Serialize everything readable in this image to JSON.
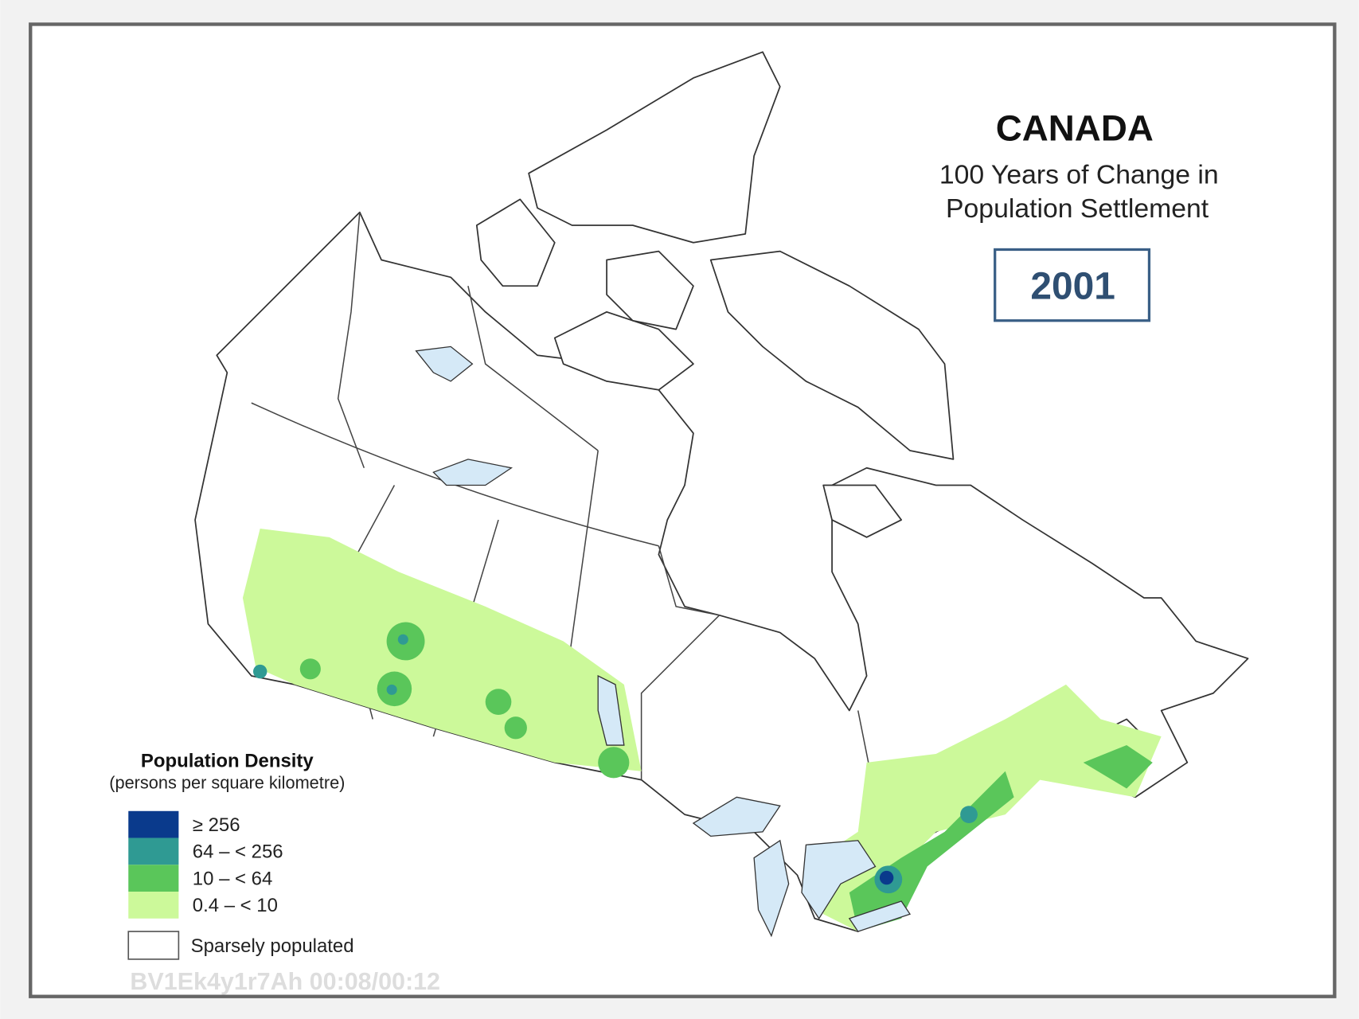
{
  "header": {
    "title": "CANADA",
    "subtitle_lines": [
      "100 Years of Change in",
      "Population Settlement"
    ],
    "year": "2001"
  },
  "legend": {
    "title": "Population Density",
    "subtitle": "(persons per square kilometre)",
    "items": [
      {
        "label": "≥ 256",
        "color": "#0a3a8c"
      },
      {
        "label": "64 – < 256",
        "color": "#2f9a93"
      },
      {
        "label": "10 – < 64",
        "color": "#5ac65a"
      },
      {
        "label": "0.4 – < 10",
        "color": "#ccf99a"
      },
      {
        "label": "Sparsely populated",
        "color": "#ffffff"
      }
    ]
  },
  "watermark": "BV1Ek4y1r7Ah 00:08/00:12"
}
